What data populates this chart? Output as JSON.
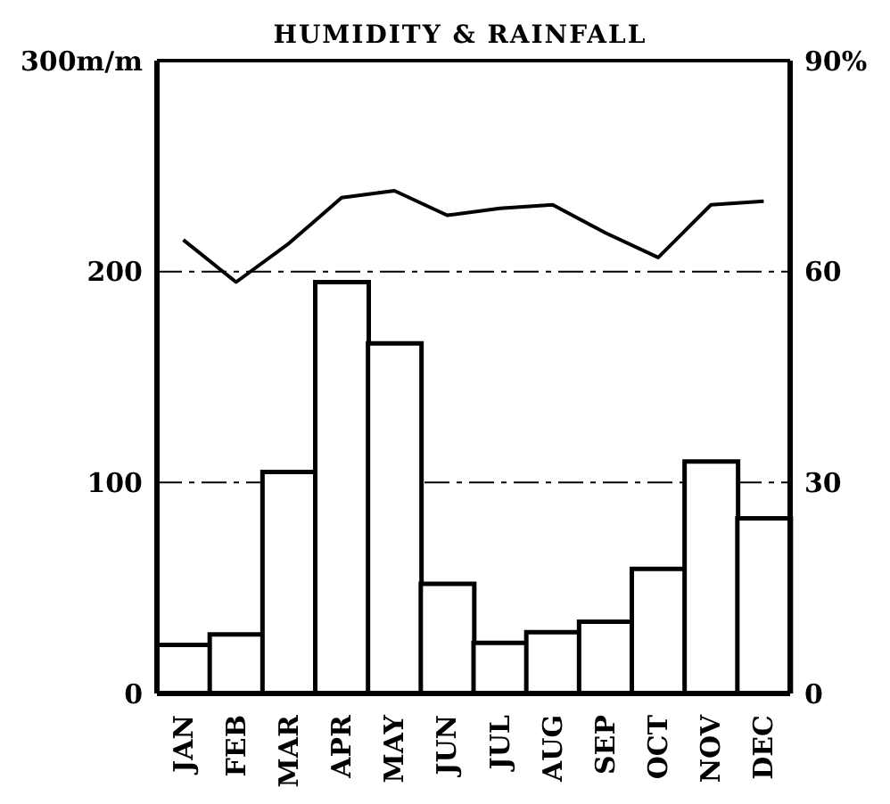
{
  "chart_data": {
    "type": "bar",
    "title": "HUMIDITY & RAINFALL",
    "categories": [
      "JAN",
      "FEB",
      "MAR",
      "APR",
      "MAY",
      "JUN",
      "JUL",
      "AUG",
      "SEP",
      "OCT",
      "NOV",
      "DEC"
    ],
    "series": [
      {
        "color": "#ffffff",
        "values": [
          23,
          28,
          105,
          195,
          166,
          52,
          24,
          29,
          34,
          59,
          110,
          83
        ]
      },
      {
        "type": "line",
        "axis": "y2",
        "color": "#000000",
        "values": [
          64.5,
          58.5,
          64,
          70.5,
          71.5,
          68,
          69,
          69.5,
          65.5,
          62,
          69.5,
          70
        ]
      }
    ],
    "ylim": [
      0,
      300
    ],
    "yticks": [
      0,
      100,
      200,
      {
        "value": 300,
        "label": "300m/m"
      }
    ],
    "y2lim": [
      0,
      90
    ],
    "y2ticks": [
      0,
      30,
      60,
      {
        "value": 90,
        "label": "90%"
      }
    ],
    "grid": "y",
    "marker": "none",
    "line_style": "solid"
  }
}
